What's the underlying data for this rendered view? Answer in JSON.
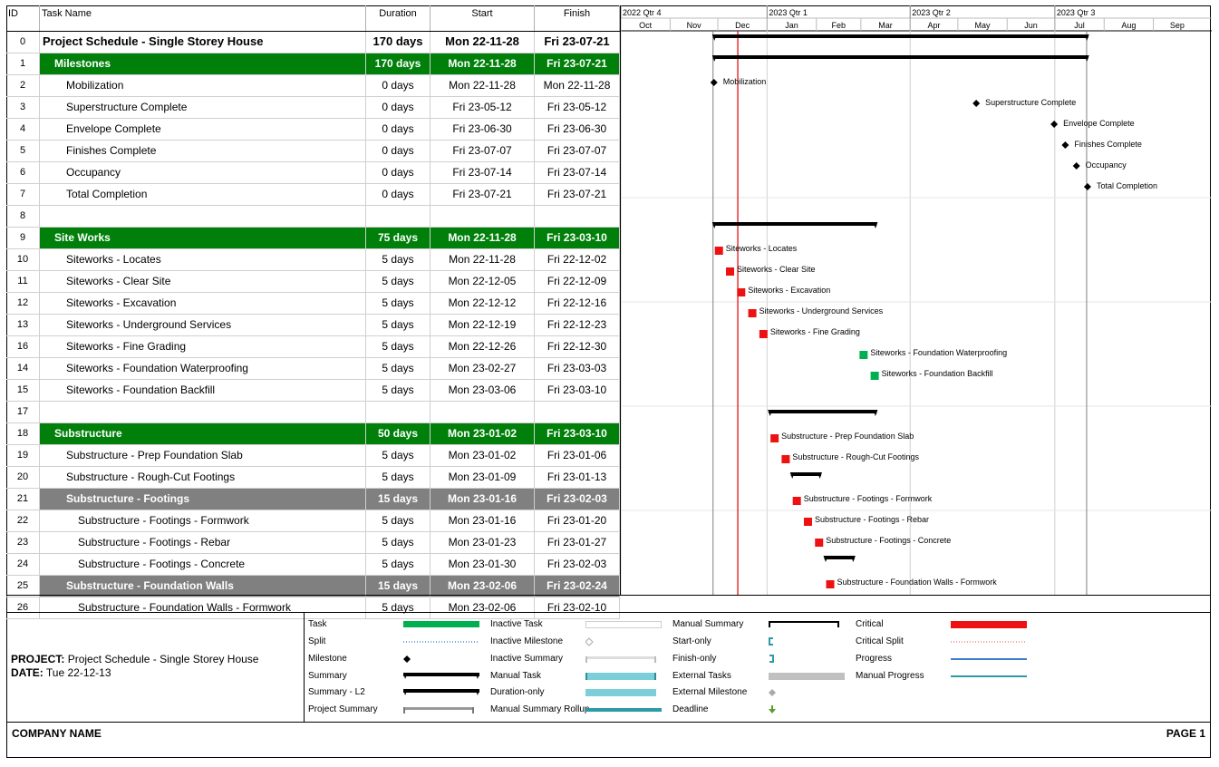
{
  "columns": {
    "id": "ID",
    "name": "Task Name",
    "duration": "Duration",
    "start": "Start",
    "finish": "Finish"
  },
  "timescale": {
    "quarters": [
      "2022 Qtr 4",
      "2023 Qtr 1",
      "2023 Qtr 2",
      "2023 Qtr 3"
    ],
    "months": [
      "Oct",
      "Nov",
      "Dec",
      "Jan",
      "Feb",
      "Mar",
      "Apr",
      "May",
      "Jun",
      "Jul",
      "Aug",
      "Sep"
    ]
  },
  "rows": [
    {
      "id": "0",
      "name": "Project Schedule - Single Storey House",
      "duration": "170 days",
      "start": "Mon 22-11-28",
      "finish": "Fri 23-07-21",
      "style": "project",
      "indent": 0
    },
    {
      "id": "1",
      "name": "Milestones",
      "duration": "170 days",
      "start": "Mon 22-11-28",
      "finish": "Fri 23-07-21",
      "style": "green",
      "indent": 1
    },
    {
      "id": "2",
      "name": "Mobilization",
      "duration": "0 days",
      "start": "Mon 22-11-28",
      "finish": "Mon 22-11-28",
      "style": "",
      "indent": 2
    },
    {
      "id": "3",
      "name": "Superstructure Complete",
      "duration": "0 days",
      "start": "Fri 23-05-12",
      "finish": "Fri 23-05-12",
      "style": "",
      "indent": 2
    },
    {
      "id": "4",
      "name": "Envelope Complete",
      "duration": "0 days",
      "start": "Fri 23-06-30",
      "finish": "Fri 23-06-30",
      "style": "",
      "indent": 2
    },
    {
      "id": "5",
      "name": "Finishes Complete",
      "duration": "0 days",
      "start": "Fri 23-07-07",
      "finish": "Fri 23-07-07",
      "style": "",
      "indent": 2
    },
    {
      "id": "6",
      "name": "Occupancy",
      "duration": "0 days",
      "start": "Fri 23-07-14",
      "finish": "Fri 23-07-14",
      "style": "",
      "indent": 2
    },
    {
      "id": "7",
      "name": "Total Completion",
      "duration": "0 days",
      "start": "Fri 23-07-21",
      "finish": "Fri 23-07-21",
      "style": "",
      "indent": 2
    },
    {
      "id": "8",
      "name": "",
      "duration": "",
      "start": "",
      "finish": "",
      "style": "",
      "indent": 0
    },
    {
      "id": "9",
      "name": "Site Works",
      "duration": "75 days",
      "start": "Mon 22-11-28",
      "finish": "Fri 23-03-10",
      "style": "green",
      "indent": 1
    },
    {
      "id": "10",
      "name": "Siteworks - Locates",
      "duration": "5 days",
      "start": "Mon 22-11-28",
      "finish": "Fri 22-12-02",
      "style": "",
      "indent": 2
    },
    {
      "id": "11",
      "name": "Siteworks - Clear Site",
      "duration": "5 days",
      "start": "Mon 22-12-05",
      "finish": "Fri 22-12-09",
      "style": "",
      "indent": 2
    },
    {
      "id": "12",
      "name": "Siteworks - Excavation",
      "duration": "5 days",
      "start": "Mon 22-12-12",
      "finish": "Fri 22-12-16",
      "style": "",
      "indent": 2
    },
    {
      "id": "13",
      "name": "Siteworks - Underground Services",
      "duration": "5 days",
      "start": "Mon 22-12-19",
      "finish": "Fri 22-12-23",
      "style": "",
      "indent": 2
    },
    {
      "id": "16",
      "name": "Siteworks - Fine Grading",
      "duration": "5 days",
      "start": "Mon 22-12-26",
      "finish": "Fri 22-12-30",
      "style": "",
      "indent": 2
    },
    {
      "id": "14",
      "name": "Siteworks - Foundation Waterproofing",
      "duration": "5 days",
      "start": "Mon 23-02-27",
      "finish": "Fri 23-03-03",
      "style": "",
      "indent": 2
    },
    {
      "id": "15",
      "name": "Siteworks - Foundation Backfill",
      "duration": "5 days",
      "start": "Mon 23-03-06",
      "finish": "Fri 23-03-10",
      "style": "",
      "indent": 2
    },
    {
      "id": "17",
      "name": "",
      "duration": "",
      "start": "",
      "finish": "",
      "style": "",
      "indent": 0
    },
    {
      "id": "18",
      "name": "Substructure",
      "duration": "50 days",
      "start": "Mon 23-01-02",
      "finish": "Fri 23-03-10",
      "style": "green",
      "indent": 1
    },
    {
      "id": "19",
      "name": "Substructure - Prep Foundation Slab",
      "duration": "5 days",
      "start": "Mon 23-01-02",
      "finish": "Fri 23-01-06",
      "style": "",
      "indent": 2
    },
    {
      "id": "20",
      "name": "Substructure - Rough-Cut Footings",
      "duration": "5 days",
      "start": "Mon 23-01-09",
      "finish": "Fri 23-01-13",
      "style": "",
      "indent": 2
    },
    {
      "id": "21",
      "name": "Substructure - Footings",
      "duration": "15 days",
      "start": "Mon 23-01-16",
      "finish": "Fri 23-02-03",
      "style": "grey",
      "indent": 2
    },
    {
      "id": "22",
      "name": "Substructure - Footings - Formwork",
      "duration": "5 days",
      "start": "Mon 23-01-16",
      "finish": "Fri 23-01-20",
      "style": "",
      "indent": 3
    },
    {
      "id": "23",
      "name": "Substructure - Footings - Rebar",
      "duration": "5 days",
      "start": "Mon 23-01-23",
      "finish": "Fri 23-01-27",
      "style": "",
      "indent": 3
    },
    {
      "id": "24",
      "name": "Substructure - Footings - Concrete",
      "duration": "5 days",
      "start": "Mon 23-01-30",
      "finish": "Fri 23-02-03",
      "style": "",
      "indent": 3
    },
    {
      "id": "25",
      "name": "Substructure - Foundation Walls",
      "duration": "15 days",
      "start": "Mon 23-02-06",
      "finish": "Fri 23-02-24",
      "style": "grey",
      "indent": 2
    },
    {
      "id": "26",
      "name": "Substructure - Foundation Walls - Formwork",
      "duration": "5 days",
      "start": "Mon 23-02-06",
      "finish": "Fri 23-02-10",
      "style": "",
      "indent": 3
    }
  ],
  "bars": [
    {
      "row": 0,
      "kind": "summary",
      "start": "2022-11-28",
      "end": "2023-07-21",
      "label": ""
    },
    {
      "row": 1,
      "kind": "summary",
      "start": "2022-11-28",
      "end": "2023-07-21",
      "label": ""
    },
    {
      "row": 2,
      "kind": "milestone",
      "start": "2022-11-28",
      "end": "2022-11-28",
      "label": "Mobilization"
    },
    {
      "row": 3,
      "kind": "milestone",
      "start": "2023-05-12",
      "end": "2023-05-12",
      "label": "Superstructure Complete"
    },
    {
      "row": 4,
      "kind": "milestone",
      "start": "2023-06-30",
      "end": "2023-06-30",
      "label": "Envelope Complete"
    },
    {
      "row": 5,
      "kind": "milestone",
      "start": "2023-07-07",
      "end": "2023-07-07",
      "label": "Finishes Complete"
    },
    {
      "row": 6,
      "kind": "milestone",
      "start": "2023-07-14",
      "end": "2023-07-14",
      "label": "Occupancy"
    },
    {
      "row": 7,
      "kind": "milestone",
      "start": "2023-07-21",
      "end": "2023-07-21",
      "label": "Total Completion"
    },
    {
      "row": 9,
      "kind": "summary",
      "start": "2022-11-28",
      "end": "2023-03-10",
      "label": ""
    },
    {
      "row": 10,
      "kind": "critical",
      "start": "2022-11-28",
      "end": "2022-12-02",
      "label": "Siteworks - Locates"
    },
    {
      "row": 11,
      "kind": "critical",
      "start": "2022-12-05",
      "end": "2022-12-09",
      "label": "Siteworks - Clear Site"
    },
    {
      "row": 12,
      "kind": "critical",
      "start": "2022-12-12",
      "end": "2022-12-16",
      "label": "Siteworks - Excavation"
    },
    {
      "row": 13,
      "kind": "critical",
      "start": "2022-12-19",
      "end": "2022-12-23",
      "label": "Siteworks - Underground Services"
    },
    {
      "row": 14,
      "kind": "critical",
      "start": "2022-12-26",
      "end": "2022-12-30",
      "label": "Siteworks - Fine Grading"
    },
    {
      "row": 15,
      "kind": "task",
      "start": "2023-02-27",
      "end": "2023-03-03",
      "label": "Siteworks - Foundation Waterproofing"
    },
    {
      "row": 16,
      "kind": "task",
      "start": "2023-03-06",
      "end": "2023-03-10",
      "label": "Siteworks - Foundation Backfill"
    },
    {
      "row": 18,
      "kind": "summary",
      "start": "2023-01-02",
      "end": "2023-03-10",
      "label": ""
    },
    {
      "row": 19,
      "kind": "critical",
      "start": "2023-01-02",
      "end": "2023-01-06",
      "label": "Substructure - Prep Foundation Slab"
    },
    {
      "row": 20,
      "kind": "critical",
      "start": "2023-01-09",
      "end": "2023-01-13",
      "label": "Substructure - Rough-Cut Footings"
    },
    {
      "row": 21,
      "kind": "summary",
      "start": "2023-01-16",
      "end": "2023-02-03",
      "label": ""
    },
    {
      "row": 22,
      "kind": "critical",
      "start": "2023-01-16",
      "end": "2023-01-20",
      "label": "Substructure - Footings - Formwork"
    },
    {
      "row": 23,
      "kind": "critical",
      "start": "2023-01-23",
      "end": "2023-01-27",
      "label": "Substructure - Footings - Rebar"
    },
    {
      "row": 24,
      "kind": "critical",
      "start": "2023-01-30",
      "end": "2023-02-03",
      "label": "Substructure - Footings - Concrete"
    },
    {
      "row": 25,
      "kind": "summary",
      "start": "2023-02-06",
      "end": "2023-02-24",
      "label": ""
    },
    {
      "row": 26,
      "kind": "critical",
      "start": "2023-02-06",
      "end": "2023-02-10",
      "label": "Substructure - Foundation Walls - Formwork"
    }
  ],
  "status_date": "2022-12-13",
  "colors": {
    "summary_green": "#00800a",
    "summary_grey": "#808080",
    "critical": "#ee1111",
    "task": "#00b050",
    "status_line": "#e00000",
    "milestone": "#000000"
  },
  "project_info": {
    "project_label": "PROJECT:",
    "project_name": "Project Schedule - Single Storey House",
    "date_label": "DATE:",
    "date_value": "Tue 22-12-13"
  },
  "legend": [
    {
      "label": "Task",
      "symbol": "task-bar"
    },
    {
      "label": "Split",
      "symbol": "split-dots"
    },
    {
      "label": "Milestone",
      "symbol": "milestone-diamond"
    },
    {
      "label": "Summary",
      "symbol": "summary-bracket"
    },
    {
      "label": "Summary - L2",
      "symbol": "summary-bracket"
    },
    {
      "label": "Project Summary",
      "symbol": "project-summary-bracket"
    },
    {
      "label": "Inactive Task",
      "symbol": "inactive-bar"
    },
    {
      "label": "Inactive Milestone",
      "symbol": "inactive-diamond"
    },
    {
      "label": "Inactive Summary",
      "symbol": "inactive-summary"
    },
    {
      "label": "Manual Task",
      "symbol": "manual-task-bar"
    },
    {
      "label": "Duration-only",
      "symbol": "duration-only-bar"
    },
    {
      "label": "Manual Summary Rollup",
      "symbol": "manual-rollup-bar"
    },
    {
      "label": "Manual Summary",
      "symbol": "manual-summary-bracket"
    },
    {
      "label": "Start-only",
      "symbol": "start-only-bracket"
    },
    {
      "label": "Finish-only",
      "symbol": "finish-only-bracket"
    },
    {
      "label": "External Tasks",
      "symbol": "external-bar"
    },
    {
      "label": "External Milestone",
      "symbol": "external-diamond"
    },
    {
      "label": "Deadline",
      "symbol": "deadline-arrow"
    },
    {
      "label": "Critical",
      "symbol": "critical-bar"
    },
    {
      "label": "Critical Split",
      "symbol": "critical-split-dots"
    },
    {
      "label": "Progress",
      "symbol": "progress-line"
    },
    {
      "label": "Manual Progress",
      "symbol": "manual-progress-line"
    }
  ],
  "footer": {
    "company": "COMPANY NAME",
    "page": "PAGE 1"
  }
}
